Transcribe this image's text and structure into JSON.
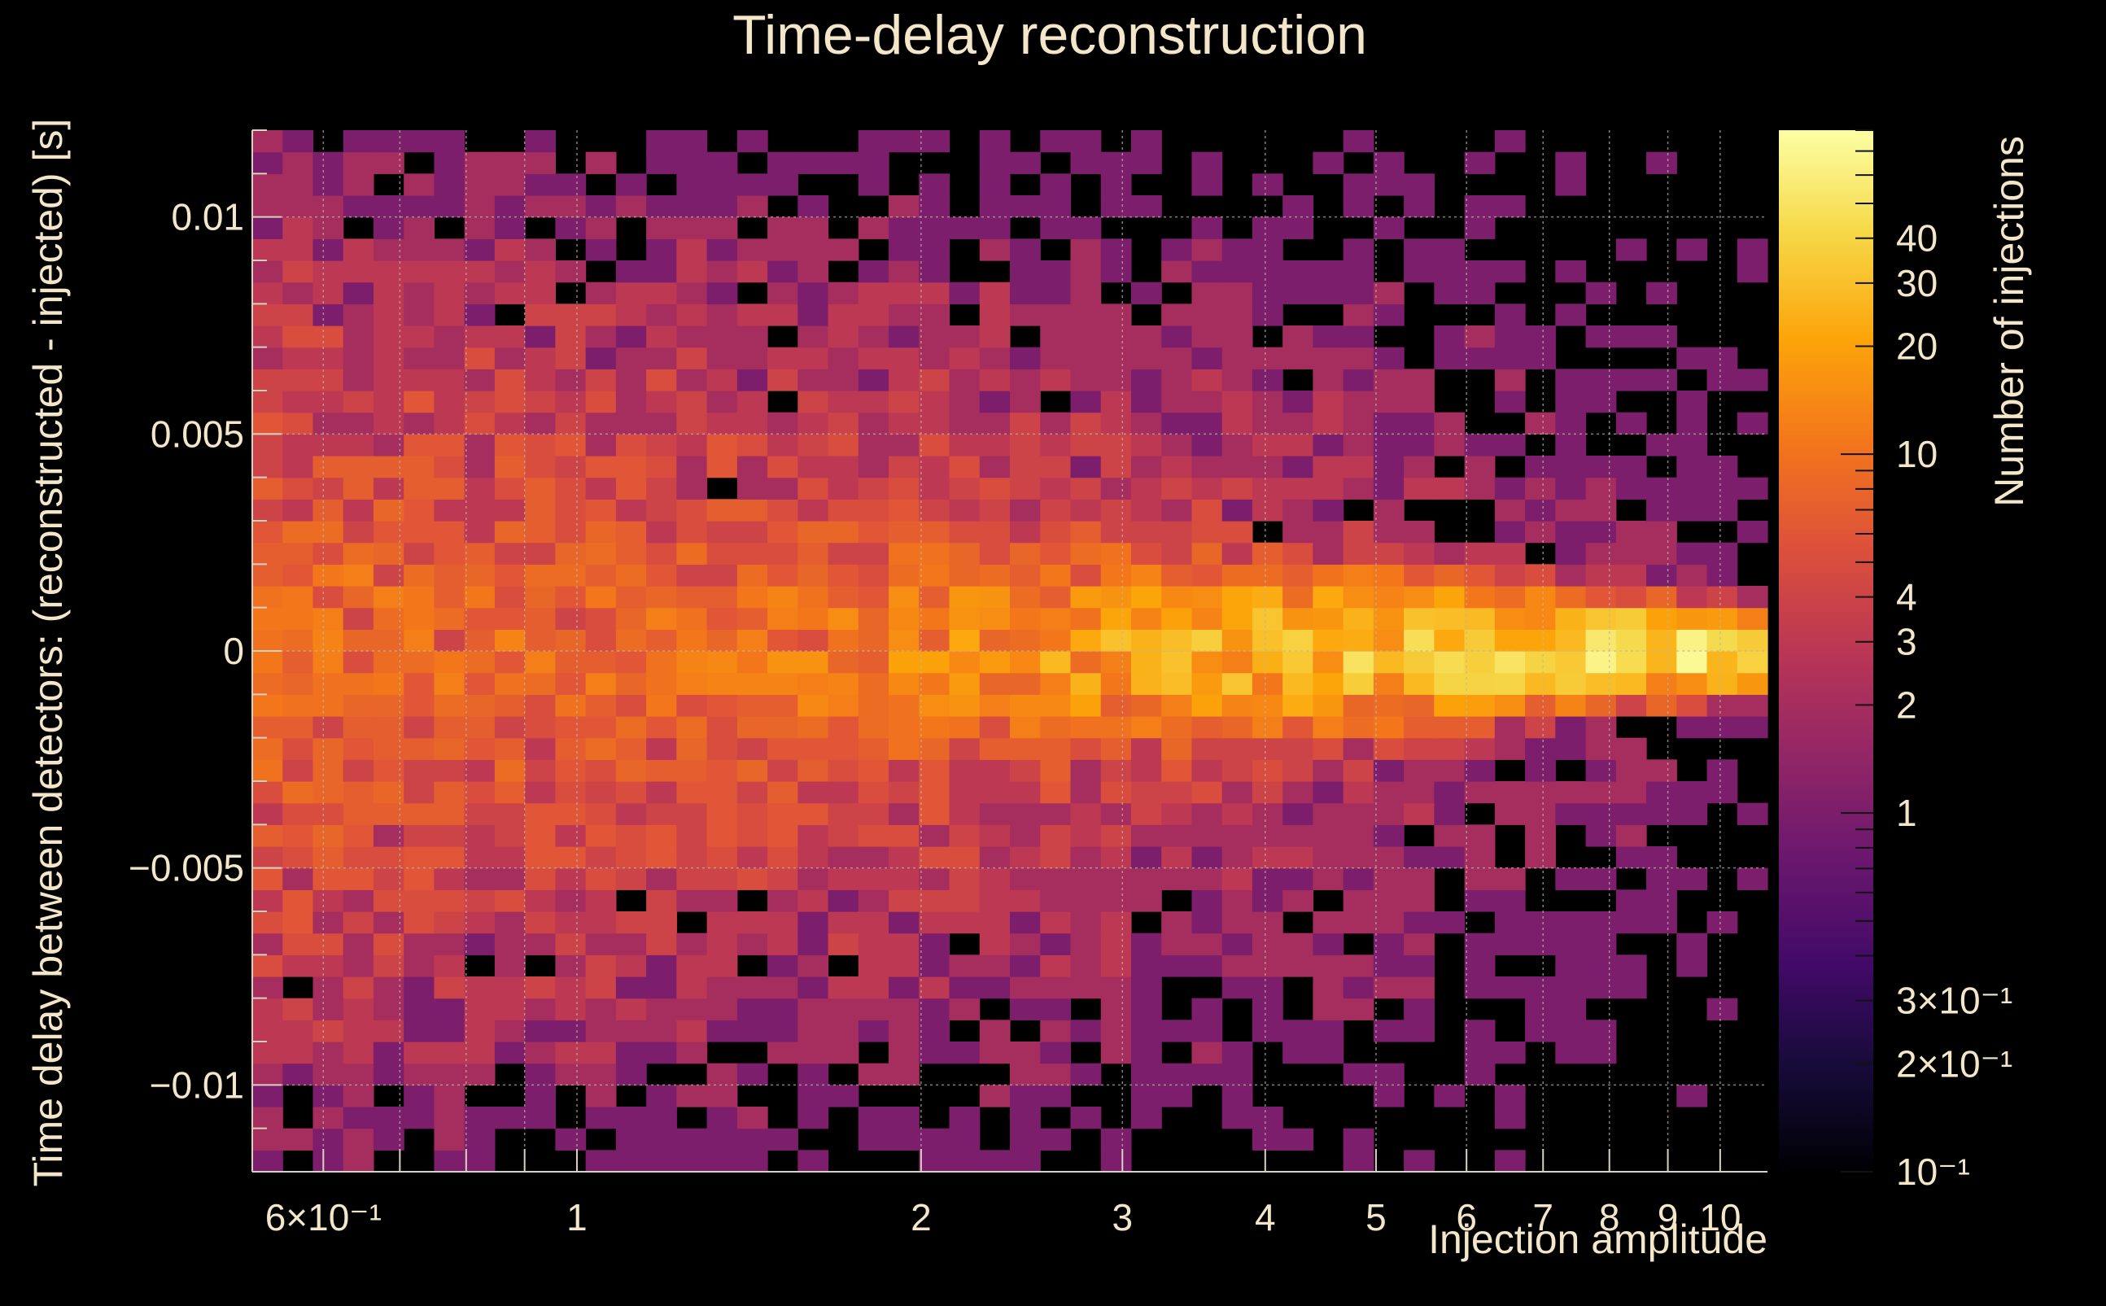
{
  "colors": {
    "background": "#000000",
    "text": "#f3e6c9",
    "grid": "#bdb7aa",
    "frame": "#d9d2c3",
    "colormap": [
      "#000004",
      "#160b39",
      "#420a68",
      "#6a176e",
      "#932667",
      "#ba3655",
      "#dd513a",
      "#f3761b",
      "#fca50a",
      "#f6d746",
      "#fcffa4"
    ]
  },
  "chart_data": {
    "type": "heatmap",
    "title": "Time-delay reconstruction",
    "xlabel": "Injection amplitude",
    "ylabel": "Time delay between detectors: (reconstructed - injected) [s]",
    "zlabel": "Number of injections",
    "x_scale": "log",
    "z_scale": "log",
    "xlim": [
      0.52,
      11
    ],
    "ylim": [
      -0.012,
      0.012
    ],
    "zlim": [
      0.1,
      80
    ],
    "grid": true,
    "x_ticks": [
      {
        "value": 0.6,
        "label": "6×10⁻¹"
      },
      {
        "value": 1,
        "label": "1"
      },
      {
        "value": 2,
        "label": "2"
      },
      {
        "value": 3,
        "label": "3"
      },
      {
        "value": 4,
        "label": "4"
      },
      {
        "value": 5,
        "label": "5"
      },
      {
        "value": 6,
        "label": "6"
      },
      {
        "value": 7,
        "label": "7"
      },
      {
        "value": 8,
        "label": "8"
      },
      {
        "value": 9,
        "label": "9"
      },
      {
        "value": 10,
        "label": "10"
      }
    ],
    "y_ticks": [
      {
        "value": 0.01,
        "label": "0.01"
      },
      {
        "value": 0.005,
        "label": "0.005"
      },
      {
        "value": 0,
        "label": "0"
      },
      {
        "value": -0.005,
        "label": "−0.005"
      },
      {
        "value": -0.01,
        "label": "−0.01"
      }
    ],
    "z_ticks": [
      {
        "value": 40,
        "label": "40"
      },
      {
        "value": 30,
        "label": "30"
      },
      {
        "value": 20,
        "label": "20"
      },
      {
        "value": 10,
        "label": "10"
      },
      {
        "value": 4,
        "label": "4"
      },
      {
        "value": 3,
        "label": "3"
      },
      {
        "value": 2,
        "label": "2"
      },
      {
        "value": 1,
        "label": "1"
      },
      {
        "value": 0.3,
        "label": "3×10⁻¹"
      },
      {
        "value": 0.2,
        "label": "2×10⁻¹"
      },
      {
        "value": 0.1,
        "label": "10⁻¹"
      }
    ],
    "bins": {
      "x_count": 50,
      "y_count": 48
    },
    "pattern_note_values": {
      "peak_count": 60,
      "peak_time_delay": 0.0,
      "peak_amplitude_range": [
        5,
        10
      ],
      "spread_at_low_amplitude": 0.0055,
      "spread_at_high_amplitude": 0.0012
    }
  }
}
